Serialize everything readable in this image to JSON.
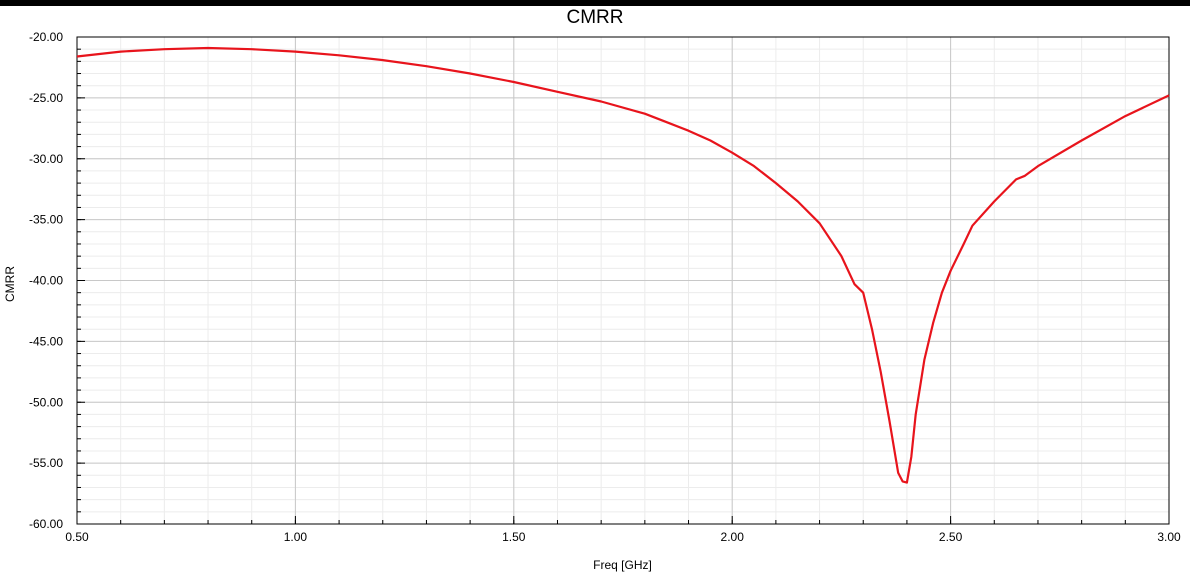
{
  "chart_data": {
    "type": "line",
    "title": "CMRR",
    "xlabel": "Freq [GHz]",
    "ylabel": "CMRR",
    "xlim": [
      0.5,
      3.0
    ],
    "ylim": [
      -60,
      -20
    ],
    "x_ticks": [
      "0.50",
      "1.00",
      "1.50",
      "2.00",
      "2.50",
      "3.00"
    ],
    "y_ticks": [
      "-20.00",
      "-25.00",
      "-30.00",
      "-35.00",
      "-40.00",
      "-45.00",
      "-50.00",
      "-55.00",
      "-60.00"
    ],
    "grid": true,
    "series": [
      {
        "color": "#e8141c",
        "x": [
          0.5,
          0.6,
          0.7,
          0.8,
          0.9,
          1.0,
          1.1,
          1.2,
          1.3,
          1.4,
          1.5,
          1.6,
          1.7,
          1.8,
          1.85,
          1.9,
          1.95,
          2.0,
          2.05,
          2.1,
          2.15,
          2.2,
          2.25,
          2.28,
          2.3,
          2.32,
          2.34,
          2.36,
          2.38,
          2.39,
          2.4,
          2.41,
          2.42,
          2.44,
          2.46,
          2.48,
          2.5,
          2.53,
          2.55,
          2.6,
          2.65,
          2.67,
          2.7,
          2.8,
          2.9,
          3.0
        ],
        "values": [
          -21.6,
          -21.2,
          -21.0,
          -20.9,
          -21.0,
          -21.2,
          -21.5,
          -21.9,
          -22.4,
          -23.0,
          -23.7,
          -24.5,
          -25.3,
          -26.3,
          -27.0,
          -27.7,
          -28.5,
          -29.5,
          -30.6,
          -32.0,
          -33.5,
          -35.3,
          -38.0,
          -40.3,
          -41.0,
          -44.0,
          -47.5,
          -51.5,
          -55.8,
          -56.5,
          -56.6,
          -54.5,
          -51.0,
          -46.5,
          -43.5,
          -41.0,
          -39.2,
          -37.0,
          -35.5,
          -33.5,
          -31.7,
          -31.4,
          -30.6,
          -28.5,
          -26.5,
          -24.8
        ]
      }
    ]
  }
}
